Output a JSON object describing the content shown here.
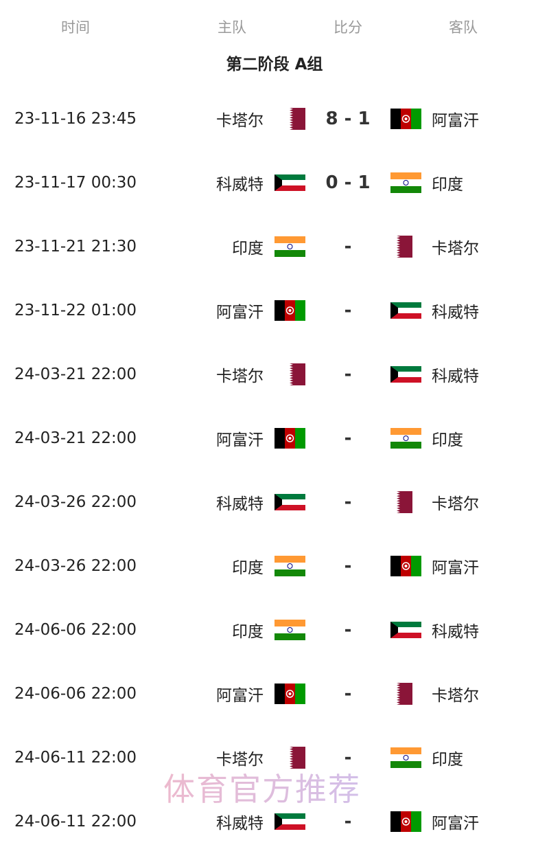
{
  "header": {
    "time": "时间",
    "home": "主队",
    "score": "比分",
    "away": "客队"
  },
  "title": "第二阶段 A组",
  "flag_colors": {
    "qatar": "#8a1538",
    "afghanistan_red": "#be0000",
    "afghanistan_green": "#009a00",
    "kuwait_green": "#007a3d",
    "kuwait_red": "#ce1126",
    "india_saffron": "#ff9933",
    "india_green": "#138808",
    "india_chakra": "#000080"
  },
  "matches": [
    {
      "time": "23-11-16 23:45",
      "home": "卡塔尔",
      "home_flag": "qatar",
      "score": "8 - 1",
      "away": "阿富汗",
      "away_flag": "afghanistan"
    },
    {
      "time": "23-11-17 00:30",
      "home": "科威特",
      "home_flag": "kuwait",
      "score": "0 - 1",
      "away": "印度",
      "away_flag": "india"
    },
    {
      "time": "23-11-21 21:30",
      "home": "印度",
      "home_flag": "india",
      "score": "-",
      "away": "卡塔尔",
      "away_flag": "qatar"
    },
    {
      "time": "23-11-22 01:00",
      "home": "阿富汗",
      "home_flag": "afghanistan",
      "score": "-",
      "away": "科威特",
      "away_flag": "kuwait"
    },
    {
      "time": "24-03-21 22:00",
      "home": "卡塔尔",
      "home_flag": "qatar",
      "score": "-",
      "away": "科威特",
      "away_flag": "kuwait"
    },
    {
      "time": "24-03-21 22:00",
      "home": "阿富汗",
      "home_flag": "afghanistan",
      "score": "-",
      "away": "印度",
      "away_flag": "india"
    },
    {
      "time": "24-03-26 22:00",
      "home": "科威特",
      "home_flag": "kuwait",
      "score": "-",
      "away": "卡塔尔",
      "away_flag": "qatar"
    },
    {
      "time": "24-03-26 22:00",
      "home": "印度",
      "home_flag": "india",
      "score": "-",
      "away": "阿富汗",
      "away_flag": "afghanistan"
    },
    {
      "time": "24-06-06 22:00",
      "home": "印度",
      "home_flag": "india",
      "score": "-",
      "away": "科威特",
      "away_flag": "kuwait"
    },
    {
      "time": "24-06-06 22:00",
      "home": "阿富汗",
      "home_flag": "afghanistan",
      "score": "-",
      "away": "卡塔尔",
      "away_flag": "qatar"
    },
    {
      "time": "24-06-11 22:00",
      "home": "卡塔尔",
      "home_flag": "qatar",
      "score": "-",
      "away": "印度",
      "away_flag": "india"
    },
    {
      "time": "24-06-11 22:00",
      "home": "科威特",
      "home_flag": "kuwait",
      "score": "-",
      "away": "阿富汗",
      "away_flag": "afghanistan"
    }
  ],
  "watermark": "体育官方推荐"
}
